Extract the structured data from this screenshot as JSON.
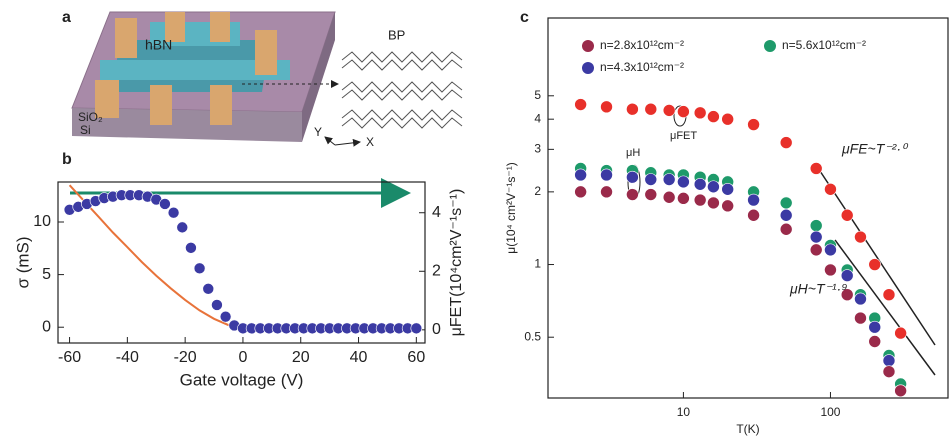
{
  "schematic": {
    "panel": "a",
    "flake": "hBN",
    "oxide": "SiO₂",
    "substrate": "Si",
    "crystal": "BP",
    "axis_y": "Y",
    "axis_x": "X"
  },
  "chart_data": [
    {
      "type": "line",
      "panel": "b",
      "xlabel": "Gate voltage (V)",
      "ylabel": "σ (mS)",
      "y2label": "μFET(10⁴cm²V⁻¹s⁻¹)",
      "xlim": [
        -64,
        63
      ],
      "xticks": [
        -60,
        -40,
        -20,
        0,
        20,
        40,
        60
      ],
      "ylim": [
        -1.5,
        13.8
      ],
      "yticks": [
        0,
        5,
        10
      ],
      "y2lim": [
        -0.45,
        5.05
      ],
      "y2ticks": [
        0,
        2,
        4
      ],
      "series": [
        {
          "mode": "line",
          "color": "#e8733a",
          "axis": "y",
          "x": [
            -60,
            -55,
            -50,
            -45,
            -40,
            -35,
            -30,
            -25,
            -20,
            -15,
            -10,
            -5,
            0,
            5,
            10,
            15,
            20,
            25,
            30,
            35,
            40,
            45,
            50,
            55,
            60
          ],
          "values": [
            13.5,
            12,
            10.5,
            9,
            7.6,
            6.2,
            4.9,
            3.7,
            2.6,
            1.6,
            0.8,
            0.2,
            0,
            0,
            0,
            0,
            0,
            0,
            0,
            0,
            0,
            0,
            0,
            0,
            0
          ]
        },
        {
          "mode": "markers",
          "color": "#3b3aa3",
          "axis": "y2",
          "x": [
            -60,
            -57,
            -54,
            -51,
            -48,
            -45,
            -42,
            -39,
            -36,
            -33,
            -30,
            -27,
            -24,
            -21,
            -18,
            -15,
            -12,
            -9,
            -6,
            -3,
            0,
            3,
            6,
            9,
            12,
            15,
            18,
            21,
            24,
            27,
            30,
            33,
            36,
            39,
            42,
            45,
            48,
            51,
            54,
            57,
            60
          ],
          "values": [
            4.1,
            4.2,
            4.3,
            4.4,
            4.5,
            4.55,
            4.6,
            4.6,
            4.6,
            4.55,
            4.45,
            4.3,
            4.0,
            3.5,
            2.8,
            2.1,
            1.4,
            0.85,
            0.45,
            0.15,
            0.05,
            0.05,
            0.05,
            0.05,
            0.05,
            0.05,
            0.05,
            0.05,
            0.05,
            0.05,
            0.05,
            0.05,
            0.05,
            0.05,
            0.05,
            0.05,
            0.05,
            0.05,
            0.05,
            0.05,
            0.05
          ]
        }
      ]
    },
    {
      "type": "scatter",
      "panel": "c",
      "xlabel": "T(K)",
      "ylabel": "μ(10⁴ cm²V⁻¹s⁻¹)",
      "log_x": true,
      "log_y": true,
      "xlim": [
        1.2,
        630
      ],
      "xticks": [
        10,
        100
      ],
      "ylim": [
        0.28,
        10.5
      ],
      "yticks": [
        0.5,
        1,
        2,
        3,
        4,
        5
      ],
      "x": [
        2,
        3,
        4.5,
        6,
        8,
        10,
        13,
        16,
        20,
        30,
        50,
        80,
        100,
        130,
        160,
        200,
        250,
        300
      ],
      "series": [
        {
          "color": "#e8302a",
          "values": [
            4.6,
            4.5,
            4.4,
            4.4,
            4.35,
            4.3,
            4.25,
            4.1,
            4.0,
            3.8,
            3.2,
            2.5,
            2.05,
            1.6,
            1.3,
            1.0,
            0.75,
            0.52
          ]
        },
        {
          "name": "n=5.6x10¹²cm⁻²",
          "color": "#1e9a6a",
          "values": [
            2.5,
            2.45,
            2.45,
            2.4,
            2.35,
            2.35,
            2.3,
            2.25,
            2.2,
            2.0,
            1.8,
            1.45,
            1.2,
            0.95,
            0.75,
            0.6,
            0.42,
            0.32
          ]
        },
        {
          "name": "n=4.3x10¹²cm⁻²",
          "color": "#3b3aa3",
          "values": [
            2.35,
            2.35,
            2.3,
            2.25,
            2.25,
            2.2,
            2.15,
            2.1,
            2.05,
            1.85,
            1.6,
            1.3,
            1.15,
            0.9,
            0.72,
            0.55,
            0.4,
            0.3
          ]
        },
        {
          "name": "n=2.8x10¹²cm⁻²",
          "color": "#9a2a4a",
          "values": [
            2.0,
            2.0,
            1.95,
            1.95,
            1.9,
            1.88,
            1.85,
            1.8,
            1.75,
            1.6,
            1.4,
            1.15,
            0.95,
            0.75,
            0.6,
            0.48,
            0.36,
            0.3
          ]
        }
      ],
      "annotations": [
        "μFE~T⁻²·⁰",
        "μH~T⁻¹·⁹",
        "μH",
        "μFET"
      ]
    }
  ]
}
